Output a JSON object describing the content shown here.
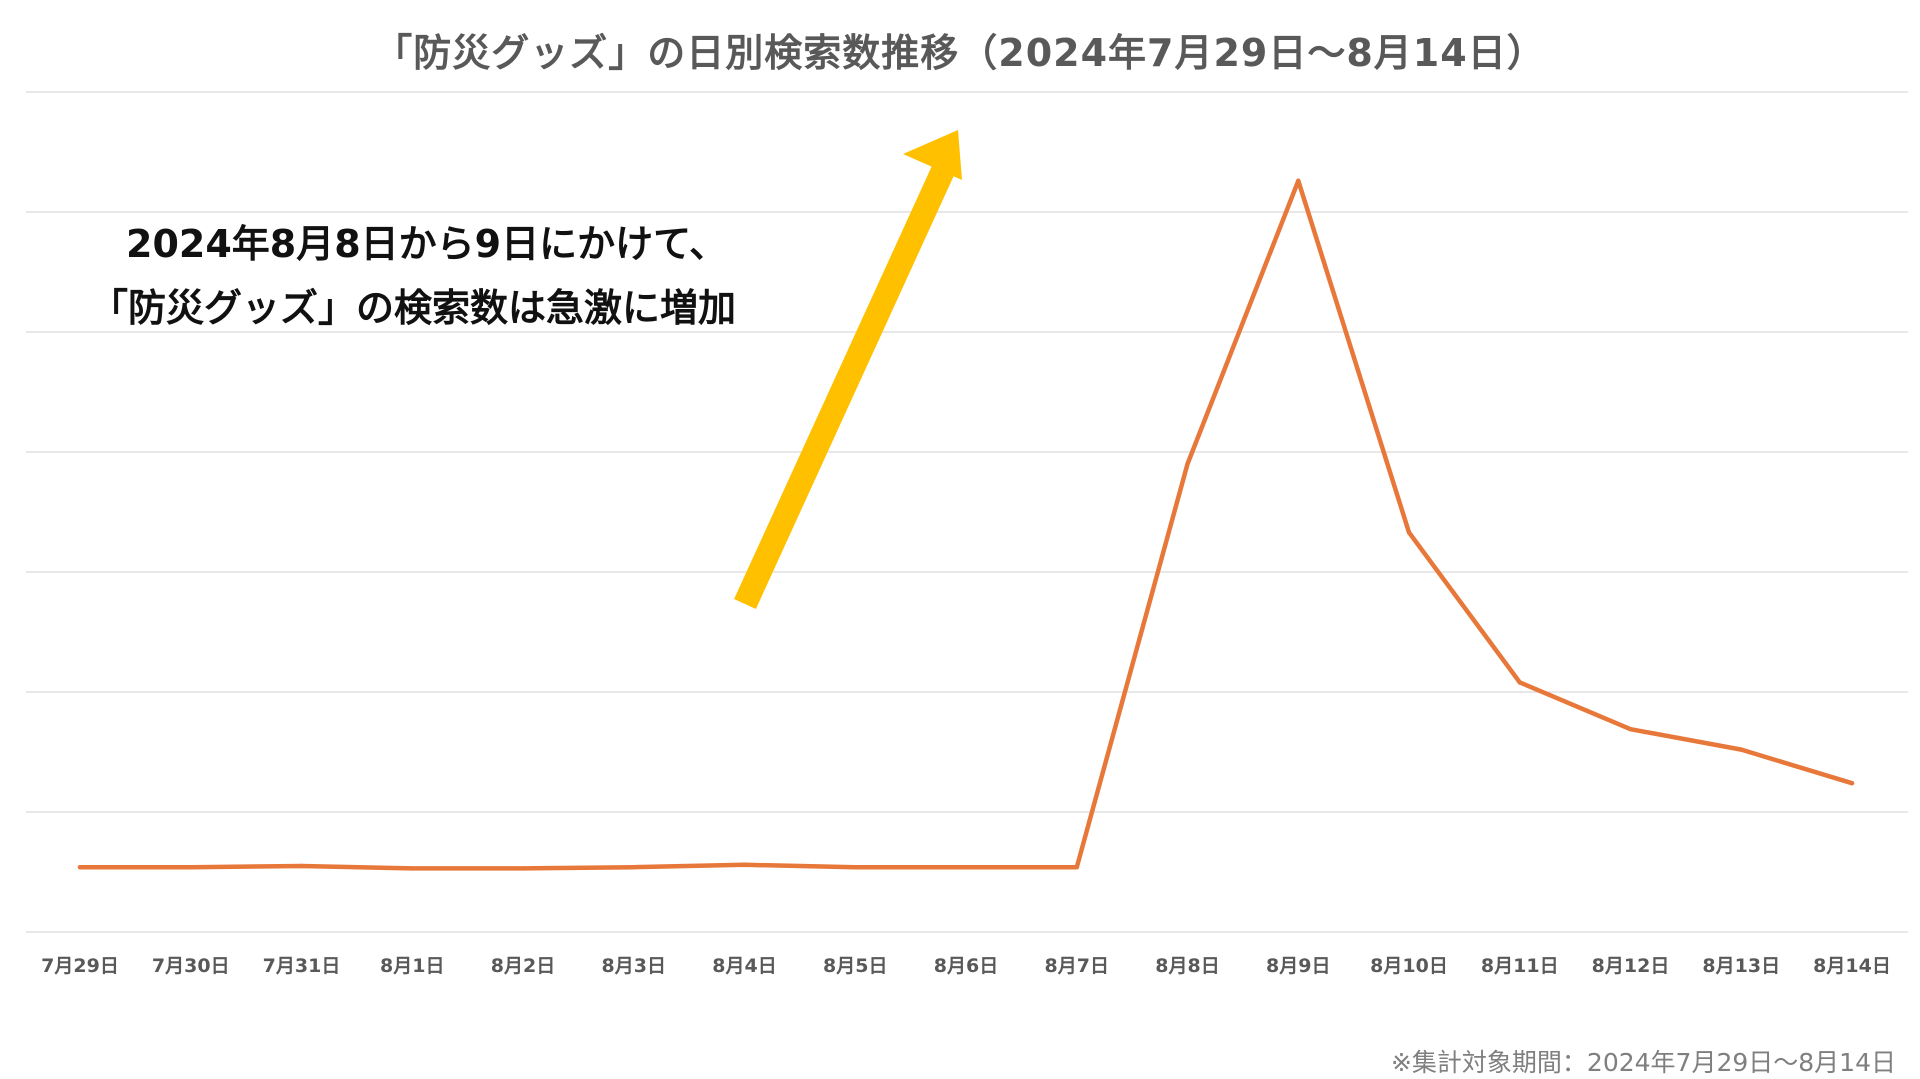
{
  "title": "「防災グッズ」の日別検索数推移（2024年7月29日〜8月14日）",
  "annotation": {
    "line1": "2024年8月8日から9日にかけて、",
    "line2": "「防災グッズ」の検索数は急激に増加"
  },
  "footnote": "※集計対象期間：2024年7月29日〜8月14日",
  "colors": {
    "line": "#E8773A",
    "arrow": "#FFC000",
    "grid": "#D9D9D9",
    "title": "#595959",
    "ticks": "#595959"
  },
  "chart_data": {
    "type": "line",
    "title": "「防災グッズ」の日別検索数推移（2024年7月29日〜8月14日）",
    "xlabel": "",
    "ylabel": "",
    "y_axis_labels_shown": false,
    "gridlines": "horizontal",
    "gridline_count": 8,
    "ylim": [
      0,
      7
    ],
    "categories": [
      "7月29日",
      "7月30日",
      "7月31日",
      "8月1日",
      "8月2日",
      "8月3日",
      "8月4日",
      "8月5日",
      "8月6日",
      "8月7日",
      "8月8日",
      "8月9日",
      "8月10日",
      "8月11日",
      "8月12日",
      "8月13日",
      "8月14日"
    ],
    "series": [
      {
        "values": [
          0.54,
          0.54,
          0.55,
          0.53,
          0.53,
          0.54,
          0.56,
          0.54,
          0.54,
          0.54,
          3.9,
          6.26,
          3.33,
          2.08,
          1.69,
          1.52,
          1.24
        ]
      }
    ]
  }
}
